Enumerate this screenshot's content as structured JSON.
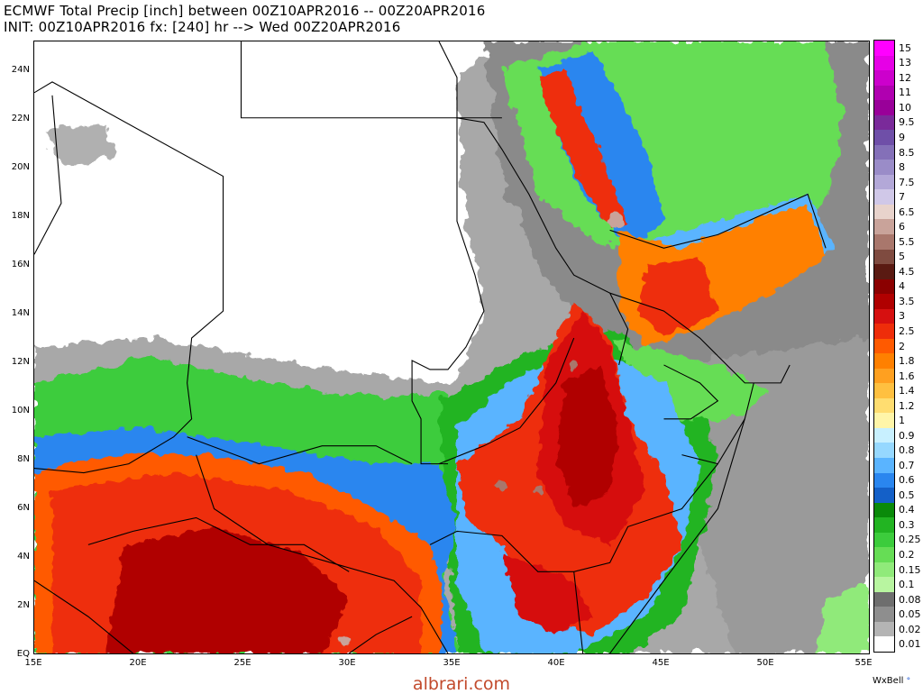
{
  "header": {
    "title_line1": "ECMWF Total Precip [inch] between 00Z10APR2016 -- 00Z20APR2016",
    "title_line2": "INIT: 00Z10APR2016 fx: [240] hr --> Wed 00Z20APR2016"
  },
  "map": {
    "lat_labels": [
      "24N",
      "22N",
      "20N",
      "18N",
      "16N",
      "14N",
      "12N",
      "10N",
      "8N",
      "6N",
      "4N",
      "2N",
      "EQ"
    ],
    "lon_labels": [
      "15E",
      "20E",
      "25E",
      "30E",
      "35E",
      "40E",
      "45E",
      "50E",
      "55E"
    ],
    "extent": {
      "lon_min": 15,
      "lon_max": 55,
      "lat_min": 0,
      "lat_max": 25
    }
  },
  "colorbar": {
    "units": "inch",
    "levels": [
      {
        "label": "15",
        "color": "#ff00ff"
      },
      {
        "label": "13",
        "color": "#e600e6"
      },
      {
        "label": "12",
        "color": "#cc00cc"
      },
      {
        "label": "11",
        "color": "#b000b0"
      },
      {
        "label": "10",
        "color": "#990099"
      },
      {
        "label": "9.5",
        "color": "#7a2a9a"
      },
      {
        "label": "9",
        "color": "#6f4fa8"
      },
      {
        "label": "8.5",
        "color": "#8470b8"
      },
      {
        "label": "8",
        "color": "#9a8cc8"
      },
      {
        "label": "7.5",
        "color": "#b3a8d8"
      },
      {
        "label": "7",
        "color": "#d0c8e8"
      },
      {
        "label": "6.5",
        "color": "#e8d3cc"
      },
      {
        "label": "6",
        "color": "#c9a39a"
      },
      {
        "label": "5.5",
        "color": "#a9776c"
      },
      {
        "label": "5",
        "color": "#7f4b40"
      },
      {
        "label": "4.5",
        "color": "#5a1a12"
      },
      {
        "label": "4",
        "color": "#8b0000"
      },
      {
        "label": "3.5",
        "color": "#b00000"
      },
      {
        "label": "3",
        "color": "#d61010"
      },
      {
        "label": "2.5",
        "color": "#ee2d0a"
      },
      {
        "label": "2",
        "color": "#ff5a00"
      },
      {
        "label": "1.8",
        "color": "#ff8000"
      },
      {
        "label": "1.6",
        "color": "#ffa020"
      },
      {
        "label": "1.4",
        "color": "#ffc040"
      },
      {
        "label": "1.2",
        "color": "#ffdd70"
      },
      {
        "label": "1",
        "color": "#fff5a8"
      },
      {
        "label": "0.9",
        "color": "#c8f0ff"
      },
      {
        "label": "0.8",
        "color": "#96d8ff"
      },
      {
        "label": "0.7",
        "color": "#5ab4ff"
      },
      {
        "label": "0.6",
        "color": "#2a86ef"
      },
      {
        "label": "0.5",
        "color": "#1460c8"
      },
      {
        "label": "0.4",
        "color": "#0a8a0a"
      },
      {
        "label": "0.3",
        "color": "#22b422"
      },
      {
        "label": "0.25",
        "color": "#3ccc3c"
      },
      {
        "label": "0.2",
        "color": "#66dd55"
      },
      {
        "label": "0.15",
        "color": "#90ea7a"
      },
      {
        "label": "0.1",
        "color": "#b8f5a0"
      },
      {
        "label": "0.08",
        "color": "#6e6e6e"
      },
      {
        "label": "0.05",
        "color": "#8e8e8e"
      },
      {
        "label": "0.02",
        "color": "#b4b4b4"
      },
      {
        "label": "0.01",
        "color": "#ffffff"
      }
    ]
  },
  "footer": {
    "watermark": "albrari.com",
    "brand": "WxBell",
    "brand_mark": "°"
  }
}
